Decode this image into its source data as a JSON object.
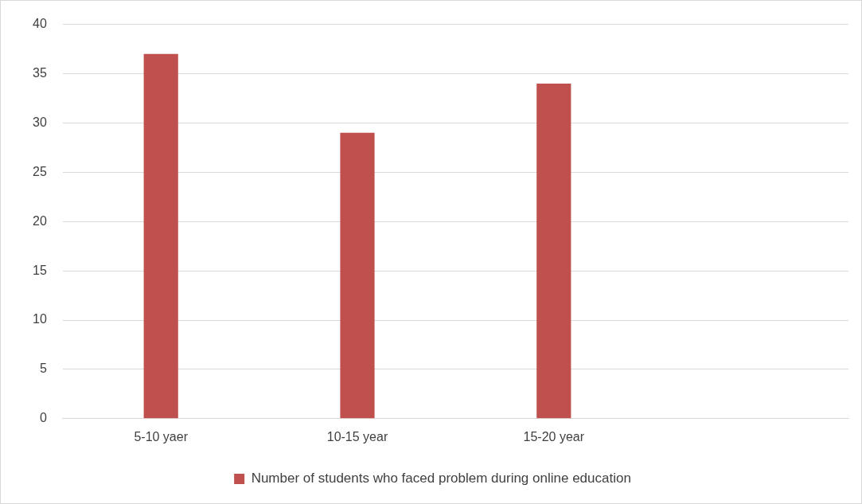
{
  "chart_data": {
    "type": "bar",
    "categories": [
      "5-10 yaer",
      "10-15 year",
      "15-20 year",
      null
    ],
    "series": [
      {
        "name": "Number of students who faced problem during online education",
        "color": "#c0504d",
        "values": [
          37,
          29,
          34,
          null
        ]
      }
    ],
    "ylim": [
      0,
      40
    ],
    "yticks": [
      0,
      5,
      10,
      15,
      20,
      25,
      30,
      35,
      40
    ],
    "grid": "y",
    "legend": "bottom"
  }
}
